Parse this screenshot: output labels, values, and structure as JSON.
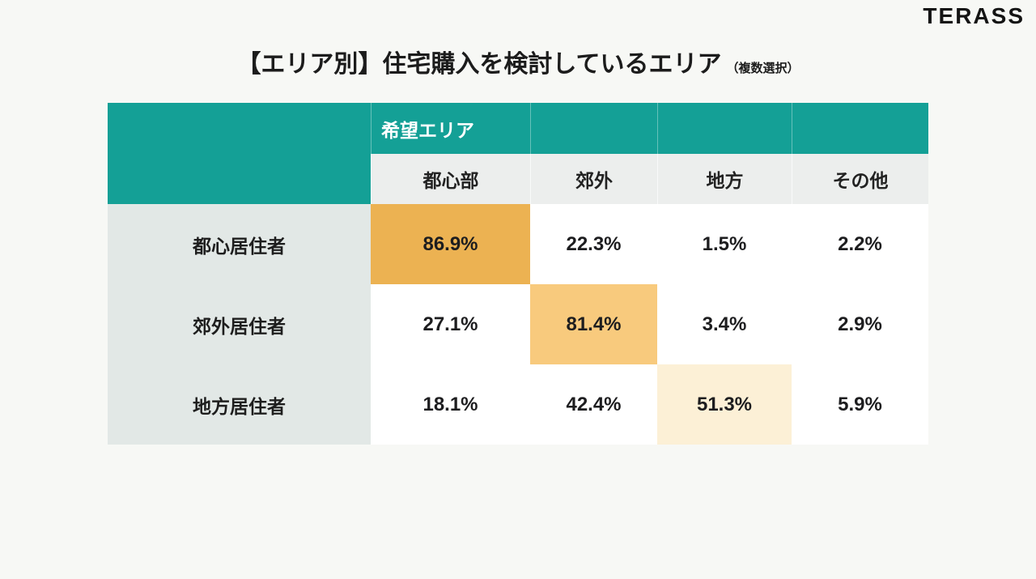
{
  "logo": {
    "text": "TERASS"
  },
  "title": {
    "main": "【エリア別】住宅購入を検討しているエリア",
    "note": "（複数選択）"
  },
  "colors": {
    "page_bg": "#f7f8f5",
    "header_teal": "#14a096",
    "column_header_bg": "#eceeed",
    "row_label_bg": "#e2e8e6",
    "cell_bg": "#ffffff",
    "highlight_strong": "#ecb252",
    "highlight_medium": "#f8ca7d",
    "highlight_light": "#fcf0d6",
    "text_dark": "#1d1d1f",
    "text_white": "#ffffff"
  },
  "chart_data": {
    "type": "table",
    "title": "【エリア別】住宅購入を検討しているエリア（複数選択）",
    "group_header": "希望エリア",
    "columns": [
      "都心部",
      "郊外",
      "地方",
      "その他"
    ],
    "rows": [
      {
        "label": "都心居住者",
        "values": [
          "86.9%",
          "22.3%",
          "1.5%",
          "2.2%"
        ],
        "highlight_column": "都心部",
        "highlight_color": "#ecb252"
      },
      {
        "label": "郊外居住者",
        "values": [
          "27.1%",
          "81.4%",
          "3.4%",
          "2.9%"
        ],
        "highlight_column": "郊外",
        "highlight_color": "#f8ca7d"
      },
      {
        "label": "地方居住者",
        "values": [
          "18.1%",
          "42.4%",
          "51.3%",
          "5.9%"
        ],
        "highlight_column": "地方",
        "highlight_color": "#fcf0d6"
      }
    ],
    "legend_position": "none",
    "grid": false
  }
}
